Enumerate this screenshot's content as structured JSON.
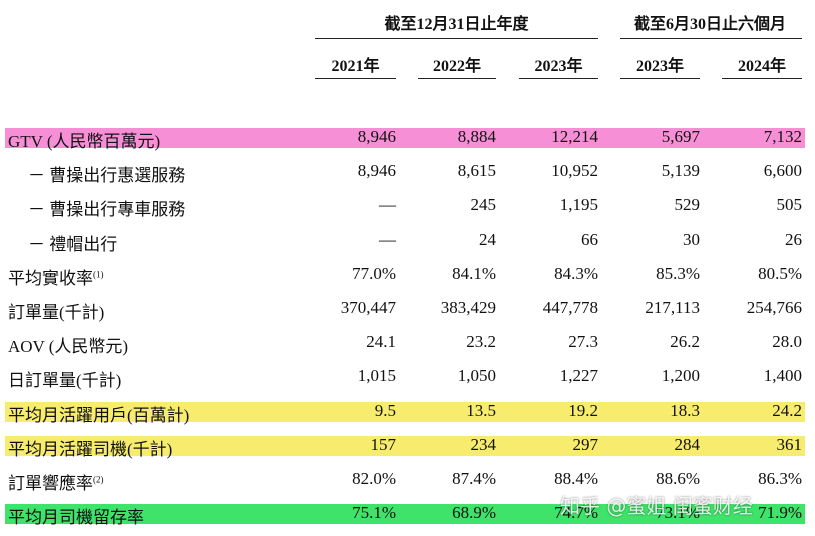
{
  "table": {
    "groups": [
      "截至12月31日止年度",
      "截至6月30日止六個月"
    ],
    "columns": [
      "2021年",
      "2022年",
      "2023年",
      "2023年",
      "2024年"
    ],
    "rows": [
      {
        "label": "GTV (人民幣百萬元)",
        "highlight": "#f78fd6",
        "values": [
          "8,946",
          "8,884",
          "12,214",
          "5,697",
          "7,132"
        ]
      },
      {
        "label": "－ 曹操出行惠選服務",
        "values": [
          "8,946",
          "8,615",
          "10,952",
          "5,139",
          "6,600"
        ]
      },
      {
        "label": "－ 曹操出行專車服務",
        "values": [
          "—",
          "245",
          "1,195",
          "529",
          "505"
        ]
      },
      {
        "label": "－ 禮帽出行",
        "values": [
          "—",
          "24",
          "66",
          "30",
          "26"
        ]
      },
      {
        "label": "平均實收率",
        "note": "(1)",
        "values": [
          "77.0%",
          "84.1%",
          "84.3%",
          "85.3%",
          "80.5%"
        ]
      },
      {
        "label": "訂單量(千計)",
        "values": [
          "370,447",
          "383,429",
          "447,778",
          "217,113",
          "254,766"
        ]
      },
      {
        "label": "AOV (人民幣元)",
        "values": [
          "24.1",
          "23.2",
          "27.3",
          "26.2",
          "28.0"
        ]
      },
      {
        "label": "日訂單量(千計)",
        "values": [
          "1,015",
          "1,050",
          "1,227",
          "1,200",
          "1,400"
        ]
      },
      {
        "label": "平均月活躍用戶(百萬計)",
        "highlight": "#f7ec6e",
        "values": [
          "9.5",
          "13.5",
          "19.2",
          "18.3",
          "24.2"
        ]
      },
      {
        "label": "平均月活躍司機(千計)",
        "highlight": "#f7ec6e",
        "values": [
          "157",
          "234",
          "297",
          "284",
          "361"
        ]
      },
      {
        "label": "訂單響應率",
        "note": "(2)",
        "values": [
          "82.0%",
          "87.4%",
          "88.4%",
          "88.6%",
          "86.3%"
        ]
      },
      {
        "label": "平均月司機留存率",
        "highlight": "#3fe36a",
        "values": [
          "75.1%",
          "68.9%",
          "74.7%",
          "73.1%",
          "71.9%"
        ]
      }
    ],
    "watermark": "知乎 @蜜姐 闺蜜财经"
  }
}
